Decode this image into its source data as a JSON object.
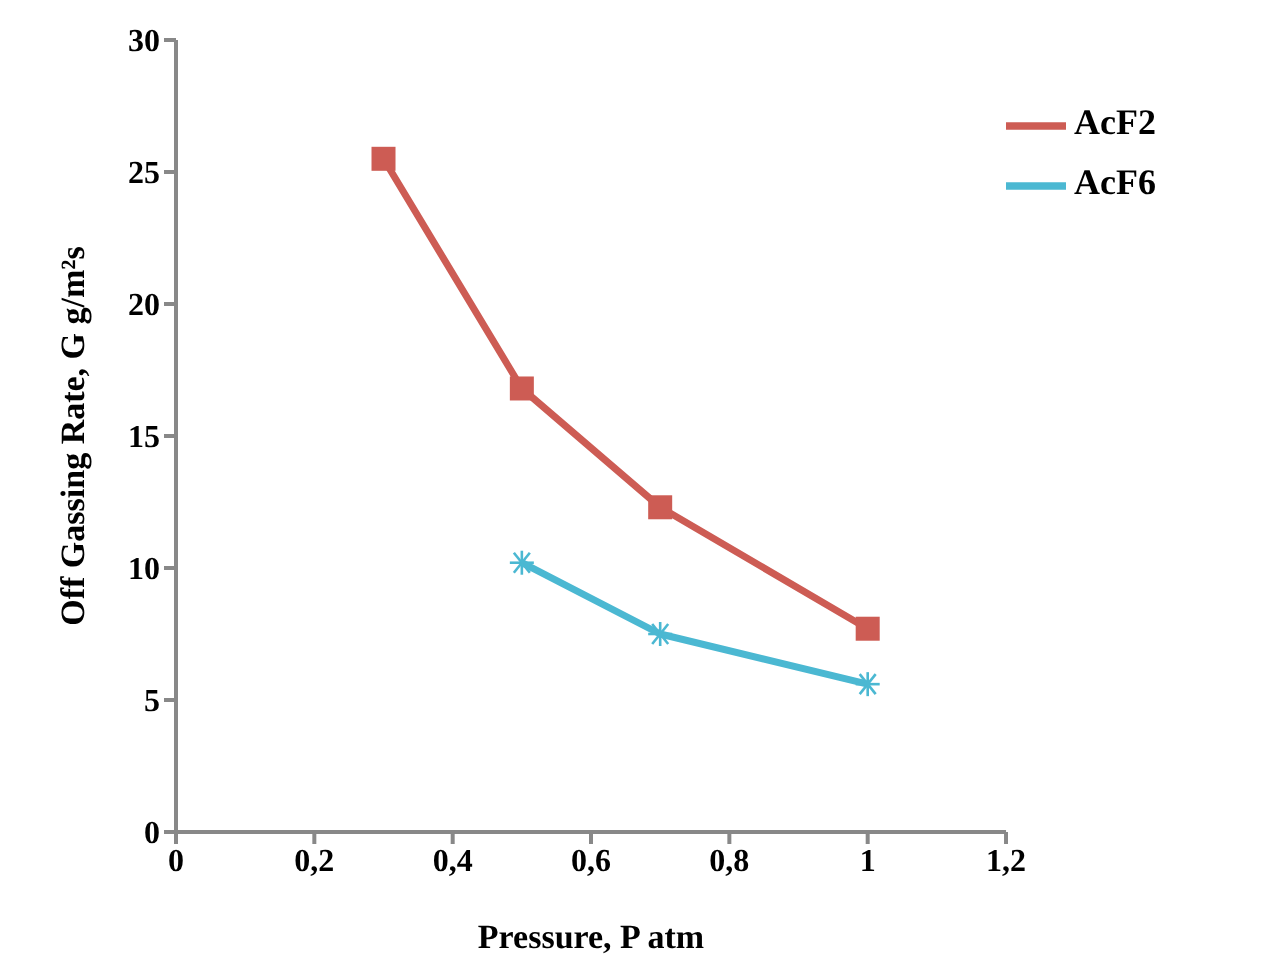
{
  "chart_data": {
    "type": "line",
    "xlabel": "Pressure, P atm",
    "ylabel": "Off Gassing Rate, G g/m²s",
    "xlim": [
      0,
      1.2
    ],
    "xticks": [
      0,
      {
        "value": 0.2,
        "label": "0,2"
      },
      {
        "value": 0.4,
        "label": "0,4"
      },
      {
        "value": 0.6,
        "label": "0,6"
      },
      {
        "value": 0.8,
        "label": "0,8"
      },
      1,
      {
        "value": 1.2,
        "label": "1,2"
      }
    ],
    "ylim": [
      0,
      30
    ],
    "yticks": [
      0,
      5,
      10,
      15,
      20,
      25,
      30
    ],
    "grid": false,
    "legend": "top right",
    "series": [
      {
        "name": "AcF2",
        "color": "#cd5c54",
        "marker": "square",
        "x": [
          0.3,
          0.5,
          0.7,
          1
        ],
        "values": [
          25.5,
          16.8,
          12.3,
          7.7
        ]
      },
      {
        "name": "AcF6",
        "color": "#4bb8d2",
        "marker": "cross",
        "x": [
          0.5,
          0.7,
          1
        ],
        "values": [
          10.2,
          7.5,
          5.6
        ]
      }
    ]
  }
}
